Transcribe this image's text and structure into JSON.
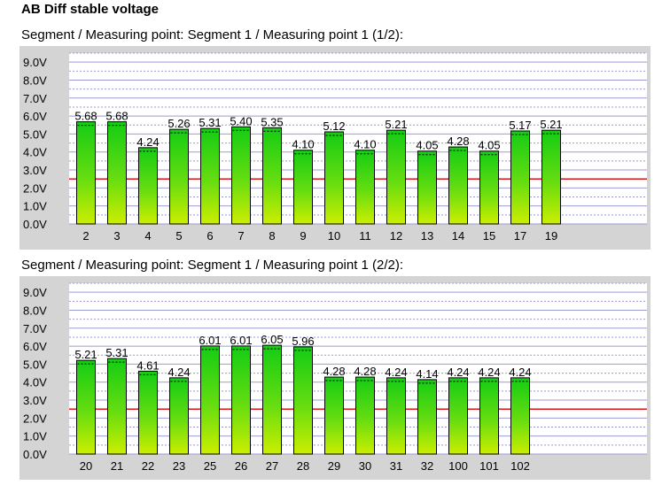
{
  "title": "AB Diff stable voltage",
  "colors": {
    "panel_bg": "#d4d4d4",
    "plot_bg": "#ffffff",
    "grid": "#9b9bd4",
    "threshold_line": "#e00000",
    "bar_top": "#14cc14",
    "bar_bottom": "#ccee00",
    "bar_border": "#000000"
  },
  "chart_data": [
    {
      "type": "bar",
      "title": "Segment / Measuring point: Segment 1 / Measuring point 1 (1/2):",
      "categories": [
        "2",
        "3",
        "4",
        "5",
        "6",
        "7",
        "8",
        "9",
        "10",
        "11",
        "12",
        "13",
        "14",
        "15",
        "17",
        "19"
      ],
      "values": [
        5.68,
        5.68,
        4.24,
        5.26,
        5.31,
        5.4,
        5.35,
        4.1,
        5.12,
        4.1,
        5.21,
        4.05,
        4.28,
        4.05,
        5.17,
        5.21
      ],
      "value_labels": [
        "5.68",
        "5.68",
        "4.24",
        "5.26",
        "5.31",
        "5.40",
        "5.35",
        "4.10",
        "5.12",
        "4.10",
        "5.21",
        "4.05",
        "4.28",
        "4.05",
        "5.17",
        "5.21"
      ],
      "ytick_labels": [
        "0.0V",
        "1.0V",
        "2.0V",
        "3.0V",
        "4.0V",
        "5.0V",
        "6.0V",
        "7.0V",
        "8.0V",
        "9.0V"
      ],
      "ylim": [
        0,
        9.5
      ],
      "threshold": 2.5,
      "grid": true
    },
    {
      "type": "bar",
      "title": "Segment / Measuring point: Segment 1 / Measuring point 1 (2/2):",
      "categories": [
        "20",
        "21",
        "22",
        "23",
        "25",
        "26",
        "27",
        "28",
        "29",
        "30",
        "31",
        "32",
        "100",
        "101",
        "102"
      ],
      "values": [
        5.21,
        5.31,
        4.61,
        4.24,
        6.01,
        6.01,
        6.05,
        5.96,
        4.28,
        4.28,
        4.24,
        4.14,
        4.24,
        4.24,
        4.24
      ],
      "value_labels": [
        "5.21",
        "5.31",
        "4.61",
        "4.24",
        "6.01",
        "6.01",
        "6.05",
        "5.96",
        "4.28",
        "4.28",
        "4.24",
        "4.14",
        "4.24",
        "4.24",
        "4.24"
      ],
      "ytick_labels": [
        "0.0V",
        "1.0V",
        "2.0V",
        "3.0V",
        "4.0V",
        "5.0V",
        "6.0V",
        "7.0V",
        "8.0V",
        "9.0V"
      ],
      "ylim": [
        0,
        9.5
      ],
      "threshold": 2.5,
      "grid": true
    }
  ]
}
